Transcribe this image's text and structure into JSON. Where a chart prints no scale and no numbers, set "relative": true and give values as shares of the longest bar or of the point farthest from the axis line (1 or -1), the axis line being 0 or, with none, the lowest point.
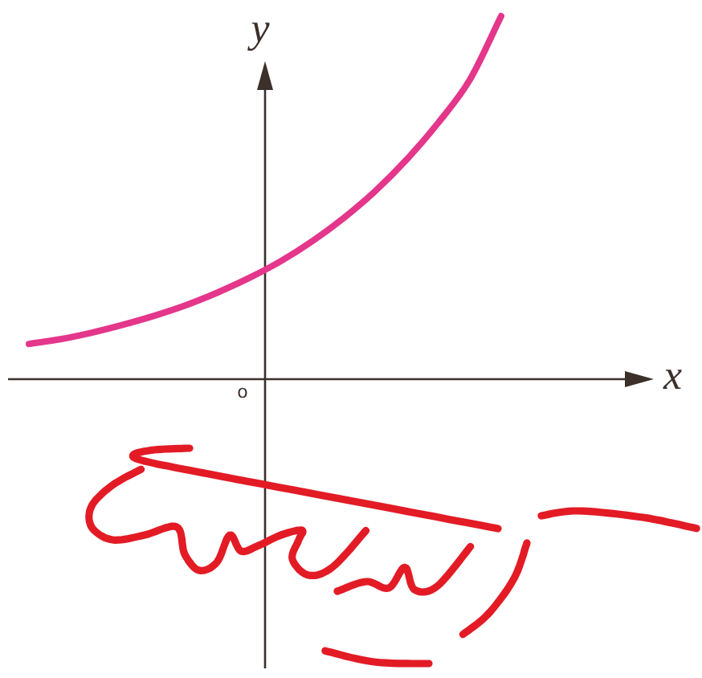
{
  "chart_data": {
    "type": "line",
    "xlabel": "x",
    "ylabel": "y",
    "annotations": [
      "o"
    ],
    "relative": true,
    "marker": "none",
    "line_style": "solid",
    "categories": [
      null,
      null,
      null,
      null,
      null,
      null,
      null,
      null,
      null,
      null,
      null,
      null,
      null,
      null,
      null,
      null
    ],
    "series": [
      {
        "color": "#e4368b",
        "values": [
          0.097,
          0.11,
          0.128,
          0.15,
          0.175,
          0.204,
          0.239,
          0.279,
          0.325,
          0.38,
          0.444,
          0.518,
          0.605,
          0.706,
          0.824,
          1
        ]
      }
    ]
  }
}
